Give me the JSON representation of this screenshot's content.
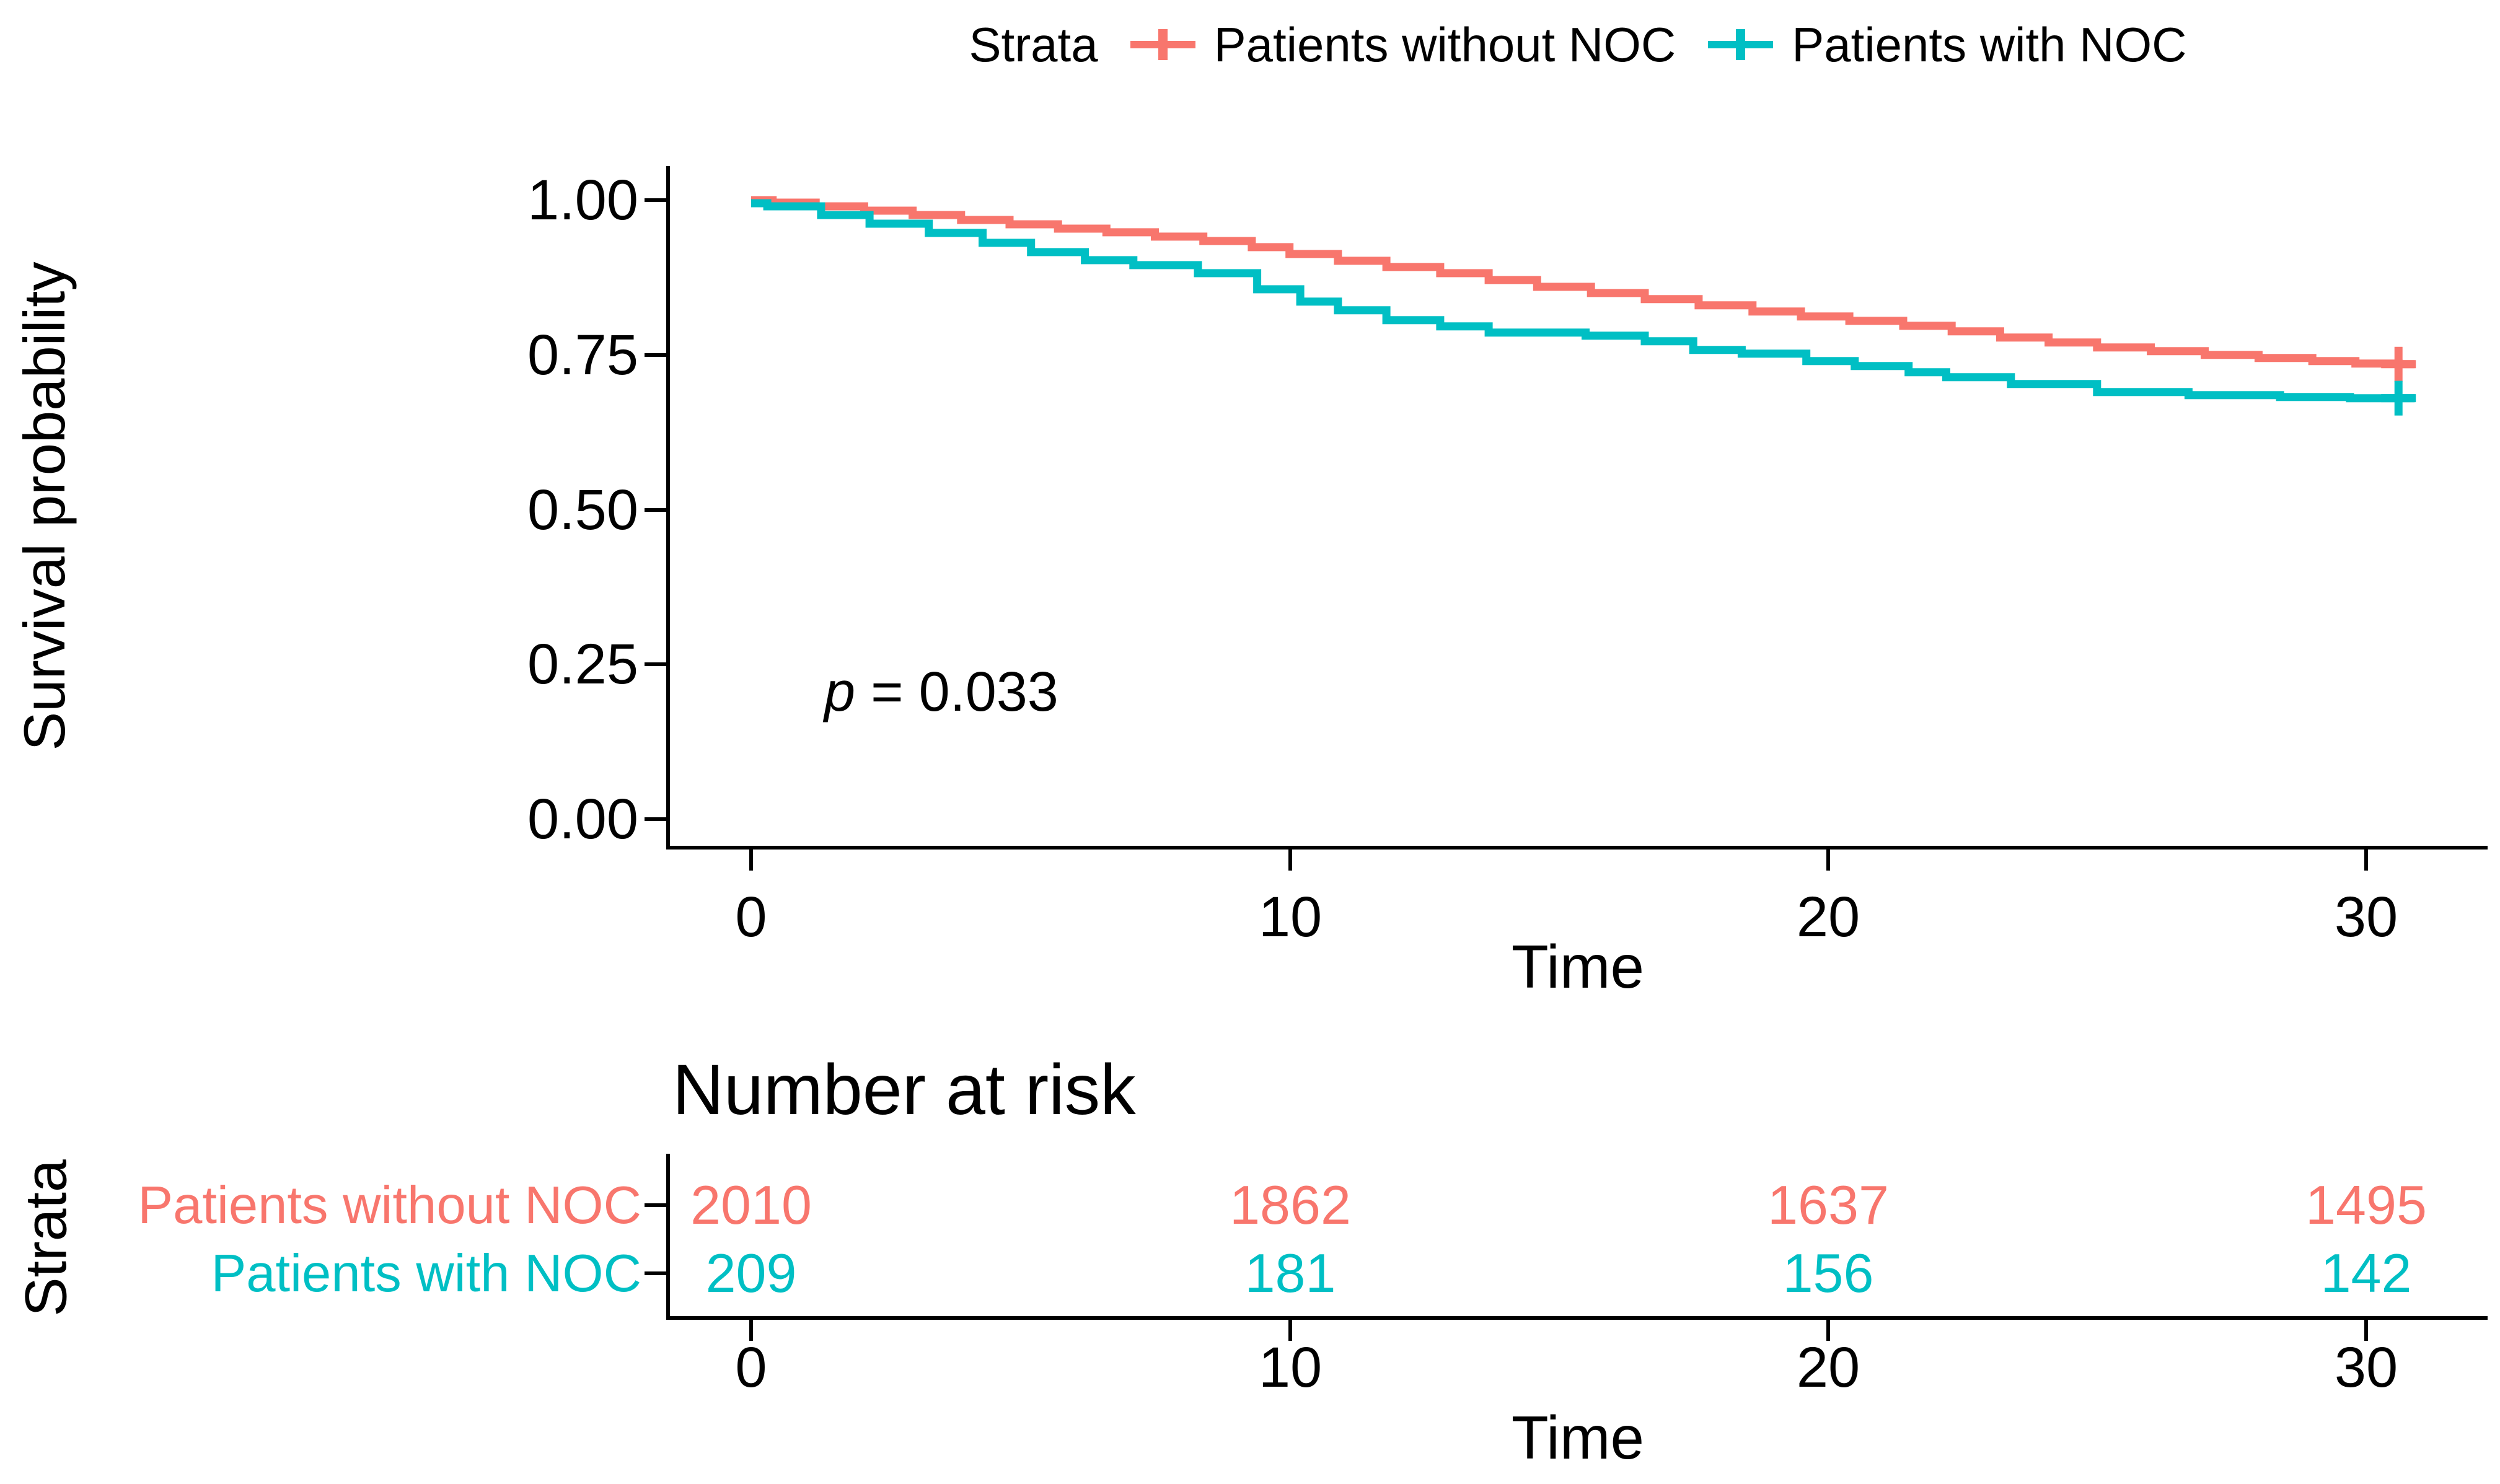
{
  "legend": {
    "title": "Strata",
    "items": [
      {
        "label": "Patients without NOC",
        "color": "#F8766D"
      },
      {
        "label": "Patients with NOC",
        "color": "#00BFC4"
      }
    ]
  },
  "main_plot": {
    "ylabel": "Survival probability",
    "xlabel": "Time",
    "p_italic": "p",
    "p_rest": " = 0.033",
    "y_tick_labels": [
      "1.00",
      "0.75",
      "0.50",
      "0.25",
      "0.00"
    ],
    "x_tick_labels": [
      "0",
      "10",
      "20",
      "30"
    ]
  },
  "risk_table": {
    "title": "Number at risk",
    "ylabel": "Strata",
    "xlabel": "Time",
    "x_tick_labels": [
      "0",
      "10",
      "20",
      "30"
    ],
    "rows": [
      {
        "label": "Patients without NOC",
        "color": "#F8766D",
        "values": [
          "2010",
          "1862",
          "1637",
          "1495"
        ]
      },
      {
        "label": "Patients with NOC",
        "color": "#00BFC4",
        "values": [
          "209",
          "181",
          "156",
          "142"
        ]
      }
    ]
  },
  "chart_data": {
    "type": "line",
    "subtype": "kaplan-meier-step",
    "title": "",
    "xlabel": "Time",
    "ylabel": "Survival probability",
    "xlim": [
      -1.5,
      32.3
    ],
    "ylim": [
      0,
      1.05
    ],
    "x_ticks": [
      0,
      10,
      20,
      30
    ],
    "y_ticks": [
      0.0,
      0.25,
      0.5,
      0.75,
      1.0
    ],
    "grid": false,
    "legend_position": "top",
    "p_value": "p = 0.033",
    "series": [
      {
        "name": "Patients without NOC",
        "color": "#F8766D",
        "censor_time": 30.6,
        "end_time": 30.9,
        "x": [
          0,
          0.4,
          1.2,
          2.1,
          3.0,
          3.9,
          4.8,
          5.7,
          6.6,
          7.5,
          8.4,
          9.3,
          10.0,
          10.9,
          11.8,
          12.8,
          13.7,
          14.6,
          15.6,
          16.6,
          17.6,
          18.6,
          19.5,
          20.4,
          21.4,
          22.3,
          23.2,
          24.1,
          25.0,
          26.0,
          27.0,
          28.0,
          29.0,
          29.8,
          30.6
        ],
        "y": [
          1.0,
          0.996,
          0.99,
          0.983,
          0.976,
          0.968,
          0.961,
          0.954,
          0.948,
          0.941,
          0.934,
          0.924,
          0.913,
          0.902,
          0.892,
          0.882,
          0.871,
          0.86,
          0.85,
          0.84,
          0.83,
          0.82,
          0.812,
          0.805,
          0.797,
          0.788,
          0.778,
          0.77,
          0.762,
          0.756,
          0.75,
          0.745,
          0.74,
          0.736,
          0.735
        ]
      },
      {
        "name": "Patients with NOC",
        "color": "#00BFC4",
        "censor_time": 30.6,
        "end_time": 30.9,
        "x": [
          0,
          0.3,
          1.3,
          2.2,
          3.3,
          4.3,
          5.2,
          6.2,
          7.1,
          8.3,
          9.4,
          10.2,
          10.9,
          11.8,
          12.8,
          13.7,
          15.5,
          16.6,
          17.5,
          18.4,
          19.6,
          20.5,
          21.5,
          22.2,
          23.4,
          25.0,
          26.7,
          28.4,
          29.7,
          30.6
        ],
        "y": [
          0.995,
          0.99,
          0.976,
          0.962,
          0.947,
          0.931,
          0.916,
          0.903,
          0.895,
          0.882,
          0.856,
          0.836,
          0.822,
          0.806,
          0.796,
          0.786,
          0.781,
          0.772,
          0.758,
          0.752,
          0.74,
          0.732,
          0.722,
          0.714,
          0.703,
          0.69,
          0.685,
          0.682,
          0.68,
          0.68
        ]
      }
    ],
    "number_at_risk": {
      "times": [
        0,
        10,
        20,
        30
      ],
      "series": [
        {
          "name": "Patients without NOC",
          "values": [
            2010,
            1862,
            1637,
            1495
          ]
        },
        {
          "name": "Patients with NOC",
          "values": [
            209,
            181,
            156,
            142
          ]
        }
      ]
    }
  }
}
